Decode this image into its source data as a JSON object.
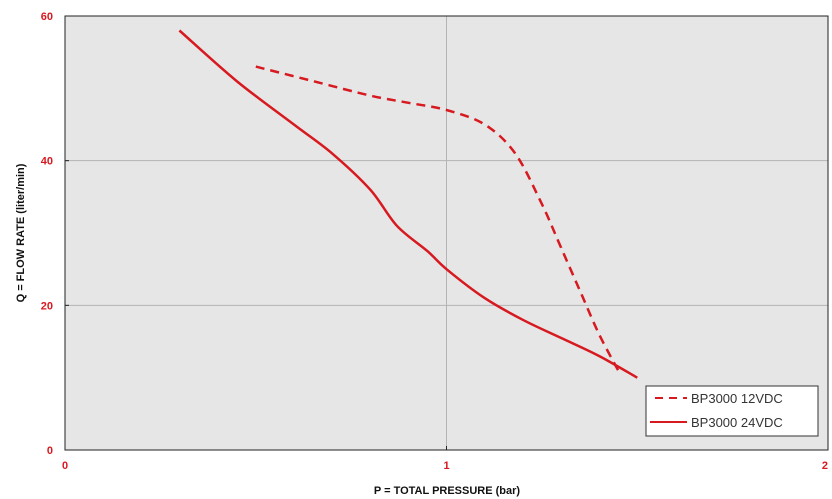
{
  "chart_data": {
    "type": "line",
    "title": "",
    "xlabel": "P = TOTAL PRESSURE (bar)",
    "ylabel": "Q = FLOW RATE (liter/min)",
    "xlim": [
      0,
      2
    ],
    "ylim": [
      0,
      60
    ],
    "x_ticks": [
      {
        "value": 0,
        "label": "0"
      },
      {
        "value": 1,
        "label": "1"
      },
      {
        "value": 2,
        "label": "2"
      }
    ],
    "y_ticks": [
      {
        "value": 0,
        "label": "0"
      },
      {
        "value": 20,
        "label": "20"
      },
      {
        "value": 40,
        "label": "40"
      },
      {
        "value": 60,
        "label": "60"
      }
    ],
    "grid": true,
    "legend_position": "bottom-right",
    "colors": {
      "series": "#d71920",
      "plot_bg": "#e6e6e6",
      "grid": "#b4b4b4",
      "tick_labels": "#d71920"
    },
    "series": [
      {
        "name": "BP3000 12VDC",
        "style": "dashed",
        "points": [
          [
            0.5,
            53
          ],
          [
            0.65,
            51
          ],
          [
            0.8,
            49
          ],
          [
            0.9,
            48
          ],
          [
            1.0,
            47
          ],
          [
            1.1,
            45
          ],
          [
            1.18,
            41
          ],
          [
            1.25,
            34
          ],
          [
            1.3,
            28
          ],
          [
            1.35,
            22
          ],
          [
            1.4,
            16
          ],
          [
            1.45,
            11
          ]
        ]
      },
      {
        "name": "BP3000 24VDC",
        "style": "solid",
        "points": [
          [
            0.3,
            58
          ],
          [
            0.45,
            51
          ],
          [
            0.6,
            45
          ],
          [
            0.7,
            41
          ],
          [
            0.8,
            36
          ],
          [
            0.87,
            31
          ],
          [
            0.95,
            27.5
          ],
          [
            1.0,
            25
          ],
          [
            1.1,
            21
          ],
          [
            1.2,
            18
          ],
          [
            1.3,
            15.5
          ],
          [
            1.4,
            13
          ],
          [
            1.5,
            10
          ]
        ]
      }
    ]
  }
}
